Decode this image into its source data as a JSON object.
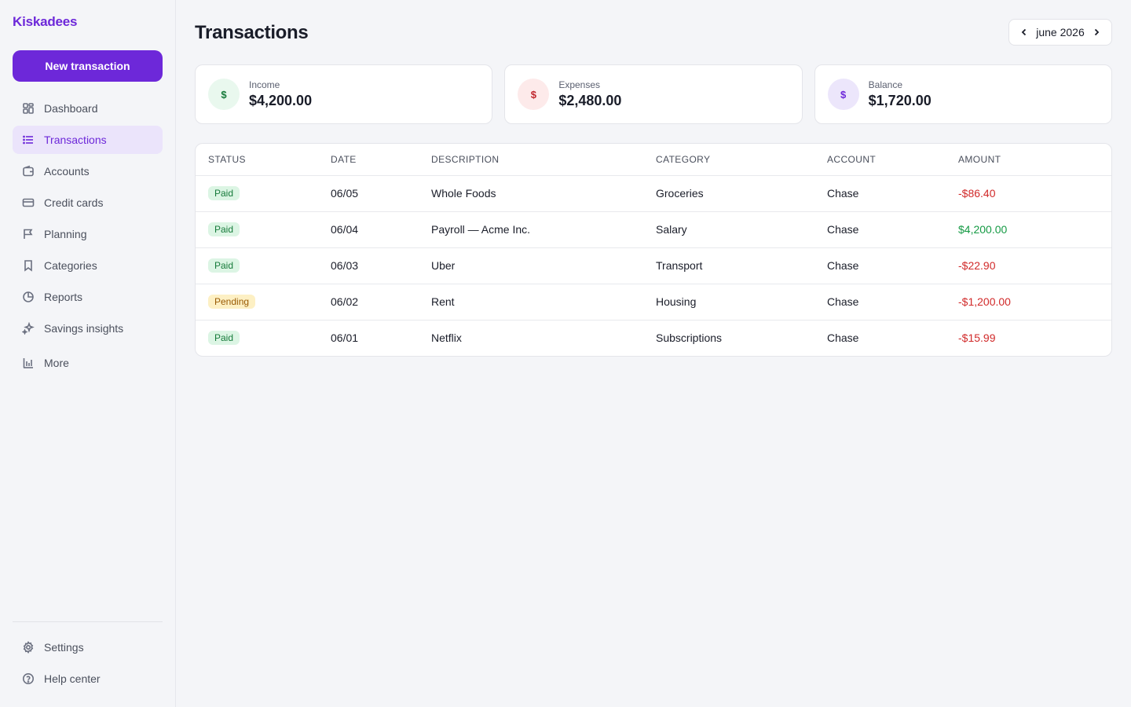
{
  "app": {
    "brand": "Kiskadees"
  },
  "sidebar": {
    "new_button": "New transaction",
    "items": [
      {
        "label": "Dashboard",
        "icon": "grid-icon"
      },
      {
        "label": "Transactions",
        "icon": "list-icon",
        "active": true
      },
      {
        "label": "Accounts",
        "icon": "wallet-icon"
      },
      {
        "label": "Credit cards",
        "icon": "credit-card-icon"
      },
      {
        "label": "Planning",
        "icon": "flag-icon"
      },
      {
        "label": "Categories",
        "icon": "bookmark-icon"
      },
      {
        "label": "Reports",
        "icon": "pie-chart-icon"
      },
      {
        "label": "Savings insights",
        "icon": "sparkles-icon"
      },
      {
        "label": "More",
        "icon": "bar-chart-icon"
      }
    ],
    "bottom_items": [
      {
        "label": "Settings",
        "icon": "gear-icon"
      },
      {
        "label": "Help center",
        "icon": "help-circle-icon"
      }
    ]
  },
  "header": {
    "title": "Transactions",
    "month": "june 2026"
  },
  "summary": [
    {
      "label": "Income",
      "value": "$4,200.00",
      "icon_glyph": "$",
      "icon_bg": "#e9f8ee",
      "icon_color": "#167a3a"
    },
    {
      "label": "Expenses",
      "value": "$2,480.00",
      "icon_glyph": "$",
      "icon_bg": "#fdeaea",
      "icon_color": "#c0262d"
    },
    {
      "label": "Balance",
      "value": "$1,720.00",
      "icon_glyph": "$",
      "icon_bg": "#ece6fb",
      "icon_color": "#6d28d9"
    }
  ],
  "table": {
    "columns": [
      "STATUS",
      "DATE",
      "DESCRIPTION",
      "CATEGORY",
      "ACCOUNT",
      "AMOUNT"
    ],
    "rows": [
      {
        "status": "Paid",
        "date": "06/05",
        "description": "Whole Foods",
        "category": "Groceries",
        "account": "Chase",
        "amount": "-$86.40"
      },
      {
        "status": "Paid",
        "date": "06/04",
        "description": "Payroll — Acme Inc.",
        "category": "Salary",
        "account": "Chase",
        "amount": "$4,200.00"
      },
      {
        "status": "Paid",
        "date": "06/03",
        "description": "Uber",
        "category": "Transport",
        "account": "Chase",
        "amount": "-$22.90"
      },
      {
        "status": "Pending",
        "date": "06/02",
        "description": "Rent",
        "category": "Housing",
        "account": "Chase",
        "amount": "-$1,200.00"
      },
      {
        "status": "Paid",
        "date": "06/01",
        "description": "Netflix",
        "category": "Subscriptions",
        "account": "Chase",
        "amount": "-$15.99"
      }
    ]
  },
  "colors": {
    "accent": "#6d28d9",
    "negative": "#d12a2a",
    "positive": "#159a44"
  }
}
